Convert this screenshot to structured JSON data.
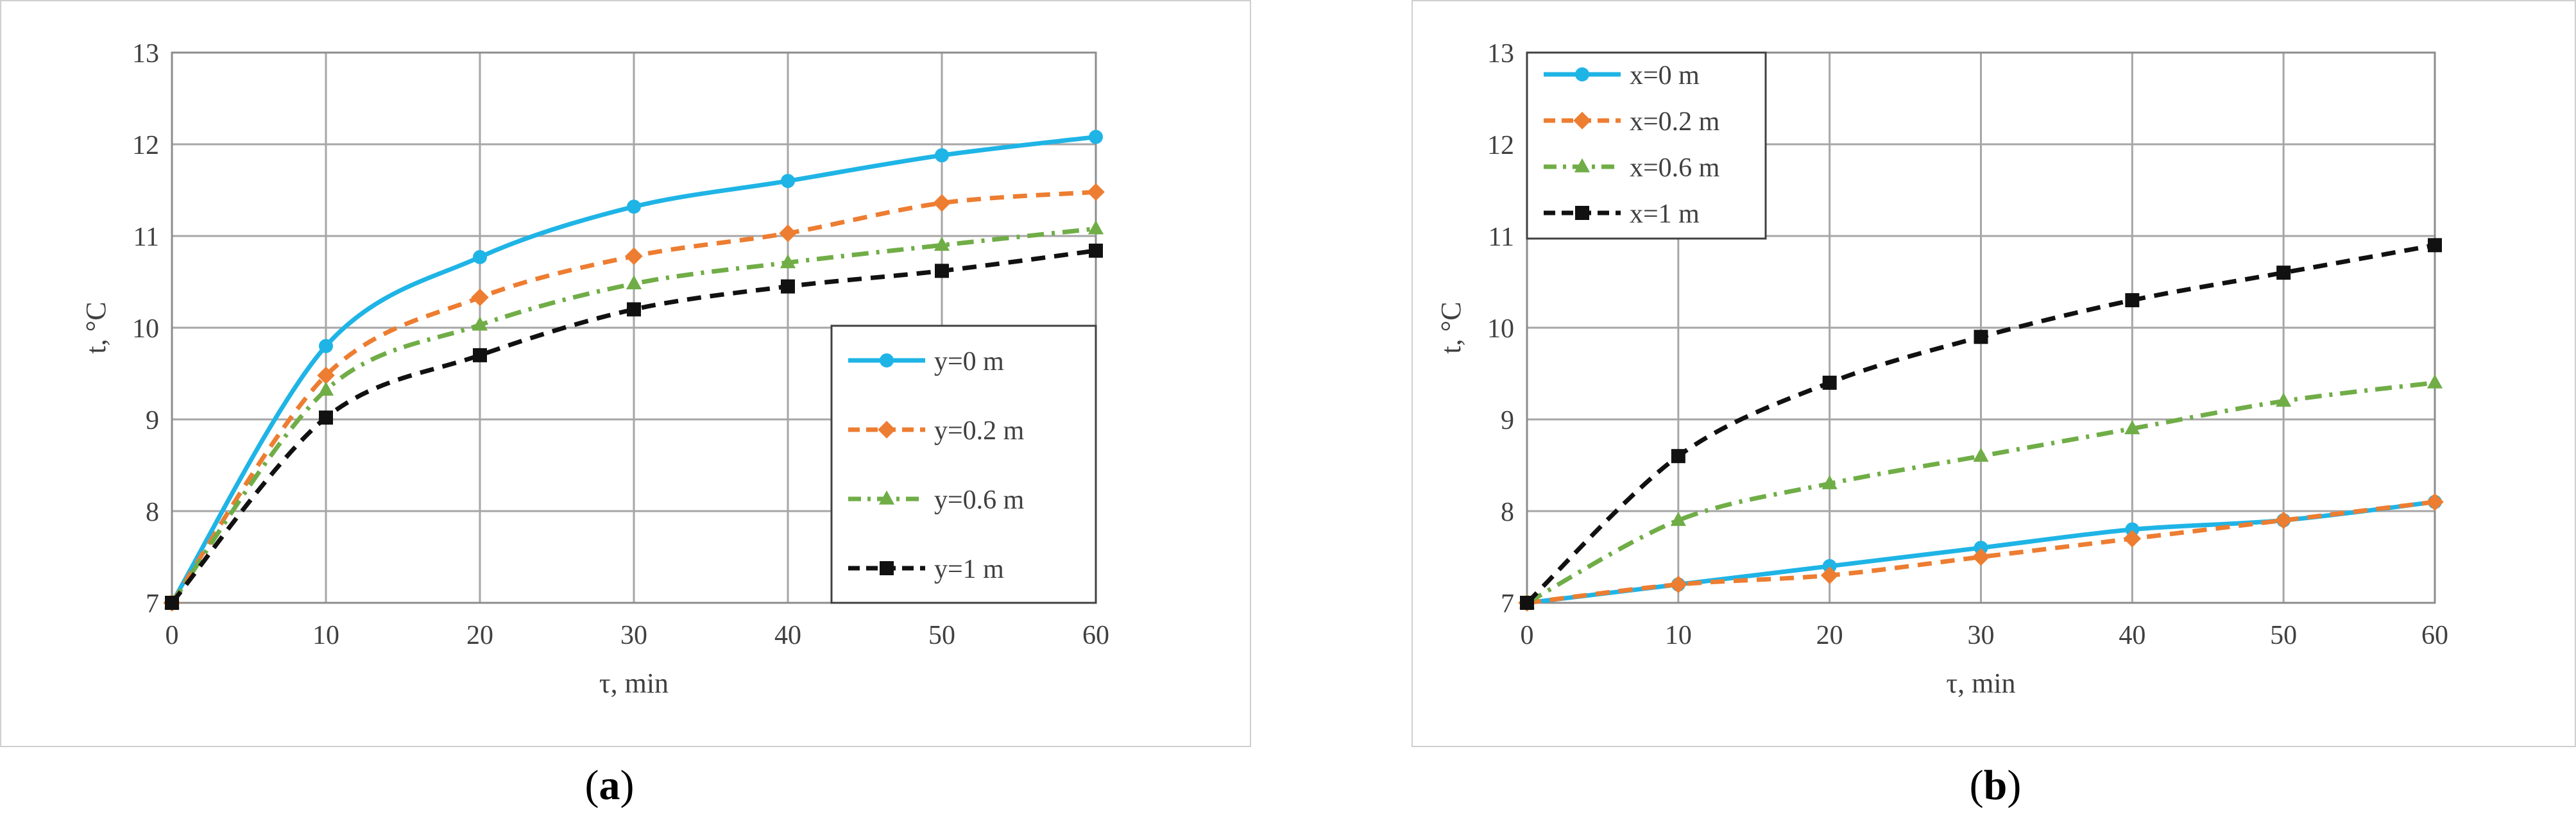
{
  "figure": {
    "captions": [
      {
        "open": "(",
        "letter": "a",
        "close": ")"
      },
      {
        "open": "(",
        "letter": "b",
        "close": ")"
      }
    ]
  },
  "chart_data": [
    {
      "type": "line",
      "panel": "a",
      "title": "",
      "xlabel": "τ, min",
      "ylabel": "t, °C",
      "x": [
        0,
        10,
        20,
        30,
        40,
        50,
        60
      ],
      "xlim": [
        0,
        60
      ],
      "ylim": [
        7,
        13
      ],
      "xticks": [
        0,
        10,
        20,
        30,
        40,
        50,
        60
      ],
      "yticks": [
        7,
        8,
        9,
        10,
        11,
        12,
        13
      ],
      "grid": true,
      "smooth": true,
      "legend_position": "bottom-right",
      "series": [
        {
          "name": "y=0 m",
          "values": [
            7.0,
            9.8,
            10.77,
            11.32,
            11.6,
            11.88,
            12.08
          ],
          "color": "#1fb4e6",
          "dash": "solid",
          "marker": "circle"
        },
        {
          "name": "y=0.2 m",
          "values": [
            7.0,
            9.48,
            10.33,
            10.78,
            11.03,
            11.36,
            11.48
          ],
          "color": "#ed7d31",
          "dash": "dash",
          "marker": "diamond"
        },
        {
          "name": "y=0.6 m",
          "values": [
            7.0,
            9.32,
            10.03,
            10.48,
            10.71,
            10.9,
            11.08
          ],
          "color": "#70ad47",
          "dash": "dashdot",
          "marker": "triangle"
        },
        {
          "name": "y=1 m",
          "values": [
            7.0,
            9.02,
            9.7,
            10.2,
            10.45,
            10.62,
            10.84
          ],
          "color": "#111111",
          "dash": "dash",
          "marker": "square"
        }
      ]
    },
    {
      "type": "line",
      "panel": "b",
      "title": "",
      "xlabel": "τ, min",
      "ylabel": "t, °C",
      "x": [
        0,
        10,
        20,
        30,
        40,
        50,
        60
      ],
      "xlim": [
        0,
        60
      ],
      "ylim": [
        7,
        13
      ],
      "xticks": [
        0,
        10,
        20,
        30,
        40,
        50,
        60
      ],
      "yticks": [
        7,
        8,
        9,
        10,
        11,
        12,
        13
      ],
      "grid": true,
      "smooth": true,
      "legend_position": "top-left",
      "series": [
        {
          "name": "x=0 m",
          "values": [
            7.0,
            7.2,
            7.4,
            7.6,
            7.8,
            7.9,
            8.1
          ],
          "color": "#1fb4e6",
          "dash": "solid",
          "marker": "circle"
        },
        {
          "name": "x=0.2 m",
          "values": [
            7.0,
            7.2,
            7.3,
            7.5,
            7.7,
            7.9,
            8.1
          ],
          "color": "#ed7d31",
          "dash": "dash",
          "marker": "diamond"
        },
        {
          "name": "x=0.6 m",
          "values": [
            7.0,
            7.9,
            8.3,
            8.6,
            8.9,
            9.2,
            9.4
          ],
          "color": "#70ad47",
          "dash": "dashdot",
          "marker": "triangle"
        },
        {
          "name": "x=1 m",
          "values": [
            7.0,
            8.6,
            9.4,
            9.9,
            10.3,
            10.6,
            10.9
          ],
          "color": "#111111",
          "dash": "dash",
          "marker": "square"
        }
      ]
    }
  ]
}
